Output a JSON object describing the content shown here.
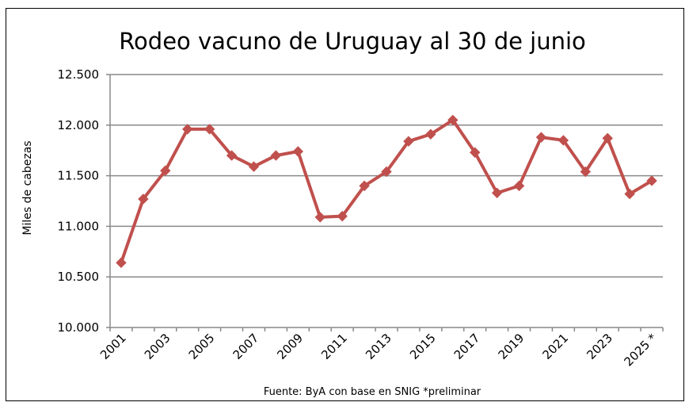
{
  "chart_data": {
    "type": "line",
    "title": "Rodeo vacuno de Uruguay al 30 de junio",
    "ylabel": "Miles de cabezas",
    "source": "Fuente: ByA con base en SNIG *preliminar",
    "ylim": [
      10000,
      12500
    ],
    "yticks": [
      {
        "value": 10000,
        "label": "10.000"
      },
      {
        "value": 10500,
        "label": "10.500"
      },
      {
        "value": 11000,
        "label": "11.000"
      },
      {
        "value": 11500,
        "label": "11.500"
      },
      {
        "value": 12000,
        "label": "12.000"
      },
      {
        "value": 12500,
        "label": "12.500"
      }
    ],
    "x": [
      "2001",
      "2002",
      "2003",
      "2004",
      "2005",
      "2006",
      "2007",
      "2008",
      "2009",
      "2010",
      "2011",
      "2012",
      "2013",
      "2014",
      "2015",
      "2016",
      "2017",
      "2018",
      "2019",
      "2020",
      "2021",
      "2022",
      "2023",
      "2024",
      "2025 *"
    ],
    "xtick_labels": [
      "2001",
      "",
      "2003",
      "",
      "2005",
      "",
      "2007",
      "",
      "2009",
      "",
      "2011",
      "",
      "2013",
      "",
      "2015",
      "",
      "2017",
      "",
      "2019",
      "",
      "2021",
      "",
      "2023",
      "",
      "2025 *"
    ],
    "series": [
      {
        "color": "#c0504d",
        "values": [
          10640,
          11270,
          11550,
          11960,
          11960,
          11700,
          11590,
          11700,
          11740,
          11090,
          11100,
          11400,
          11540,
          11840,
          11910,
          12050,
          11730,
          11330,
          11400,
          11880,
          11850,
          11540,
          11870,
          11320,
          11450
        ]
      }
    ],
    "grid": true,
    "legend": "none"
  }
}
